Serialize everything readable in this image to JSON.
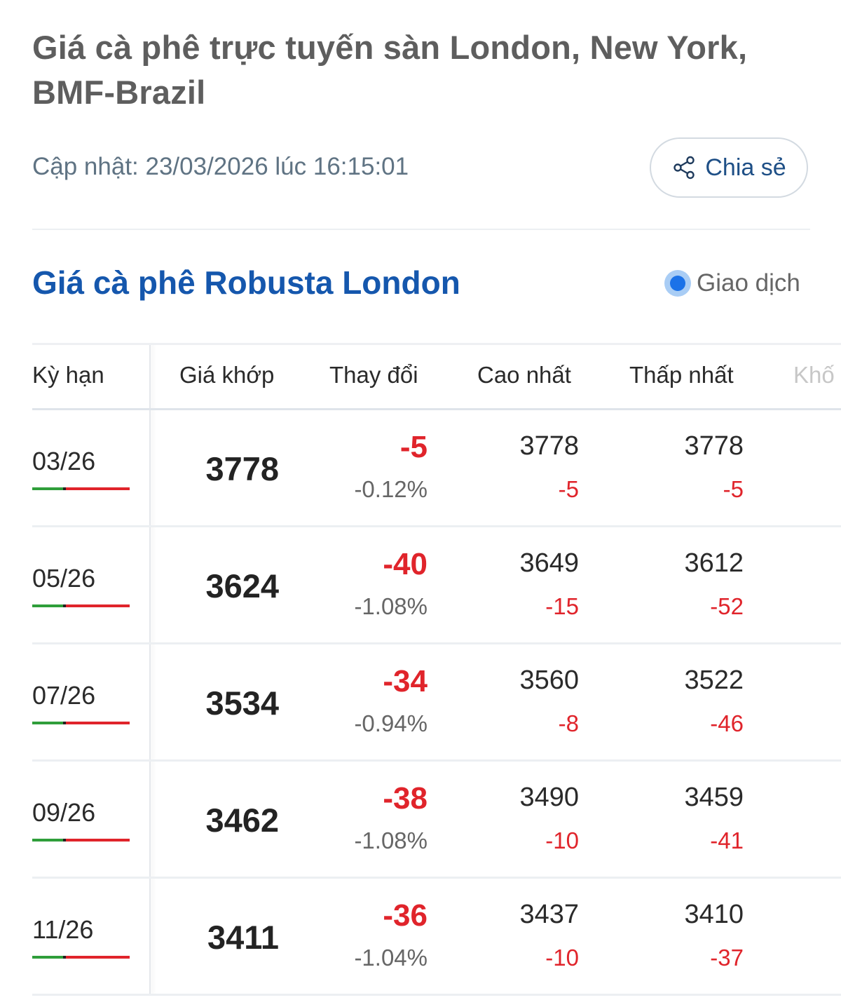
{
  "header": {
    "title": "Giá cà phê trực tuyến sàn London, New York, BMF-Brazil",
    "updated": "Cập nhật: 23/03/2026 lúc 16:15:01",
    "share_label": "Chia sẻ",
    "share_icon": "share-icon"
  },
  "section": {
    "title": "Giá cà phê Robusta London",
    "status_label": "Giao dịch",
    "status_color": "#1b72e8"
  },
  "table": {
    "columns": [
      "Kỳ hạn",
      "Giá khớp",
      "Thay đổi",
      "Cao nhất",
      "Thấp nhất",
      "Khố"
    ],
    "rows": [
      {
        "period": "03/26",
        "price": "3778",
        "change": "-5",
        "change_pct": "-0.12%",
        "high": "3778",
        "high_change": "-5",
        "low": "3778",
        "low_change": "-5"
      },
      {
        "period": "05/26",
        "price": "3624",
        "change": "-40",
        "change_pct": "-1.08%",
        "high": "3649",
        "high_change": "-15",
        "low": "3612",
        "low_change": "-52"
      },
      {
        "period": "07/26",
        "price": "3534",
        "change": "-34",
        "change_pct": "-0.94%",
        "high": "3560",
        "high_change": "-8",
        "low": "3522",
        "low_change": "-46"
      },
      {
        "period": "09/26",
        "price": "3462",
        "change": "-38",
        "change_pct": "-1.08%",
        "high": "3490",
        "high_change": "-10",
        "low": "3459",
        "low_change": "-41"
      },
      {
        "period": "11/26",
        "price": "3411",
        "change": "-36",
        "change_pct": "-1.04%",
        "high": "3437",
        "high_change": "-10",
        "low": "3410",
        "low_change": "-37"
      }
    ]
  },
  "colors": {
    "negative": "#e0242b",
    "positive": "#2f9e3a",
    "title_blue": "#1557ad"
  }
}
